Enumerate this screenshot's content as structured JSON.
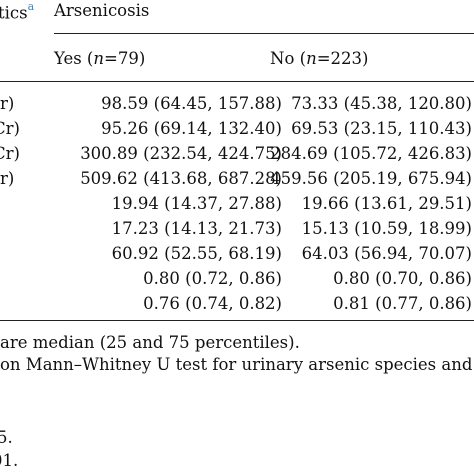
{
  "header": {
    "first_col": "tics",
    "first_col_sup": "a",
    "group": "Arsenicosis",
    "yes_label": "Yes (",
    "yes_n": "n",
    "yes_count": "=79)",
    "no_label": "No (",
    "no_n": "n",
    "no_count": "=223)"
  },
  "rows": [
    {
      "label": "r)",
      "yes": "98.59 (64.45, 157.88)",
      "no": "73.33 (45.38, 120.80)"
    },
    {
      "label": "Cr)",
      "yes": "95.26 (69.14, 132.40)",
      "no": "69.53 (23.15, 110.43)"
    },
    {
      "label": "Cr)",
      "yes": "300.89 (232.54, 424.75)",
      "no": "284.69 (105.72, 426.83)"
    },
    {
      "label": "r)",
      "yes": "509.62 (413.68, 687.28)",
      "no": "459.56 (205.19, 675.94)"
    },
    {
      "label": "",
      "yes": "19.94 (14.37, 27.88)",
      "no": "19.66 (13.61, 29.51)"
    },
    {
      "label": "",
      "yes": "17.23 (14.13, 21.73)",
      "no": "15.13 (10.59, 18.99)"
    },
    {
      "label": "",
      "yes": "60.92 (52.55, 68.19)",
      "no": "64.03 (56.94, 70.07)"
    },
    {
      "label": "",
      "yes": "0.80 (0.72, 0.86)",
      "no": "0.80 (0.70, 0.86)"
    },
    {
      "label": "",
      "yes": "0.76 (0.74, 0.82)",
      "no": "0.81 (0.77, 0.86)"
    }
  ],
  "footnotes": {
    "line1": "are median (25 and 75 percentiles).",
    "line2": "on Mann–Whitney U test for urinary arsenic species and",
    "line3": "5.",
    "line4": "01."
  },
  "colors": {
    "superscript": "#3f86c8",
    "rule": "#222222"
  }
}
